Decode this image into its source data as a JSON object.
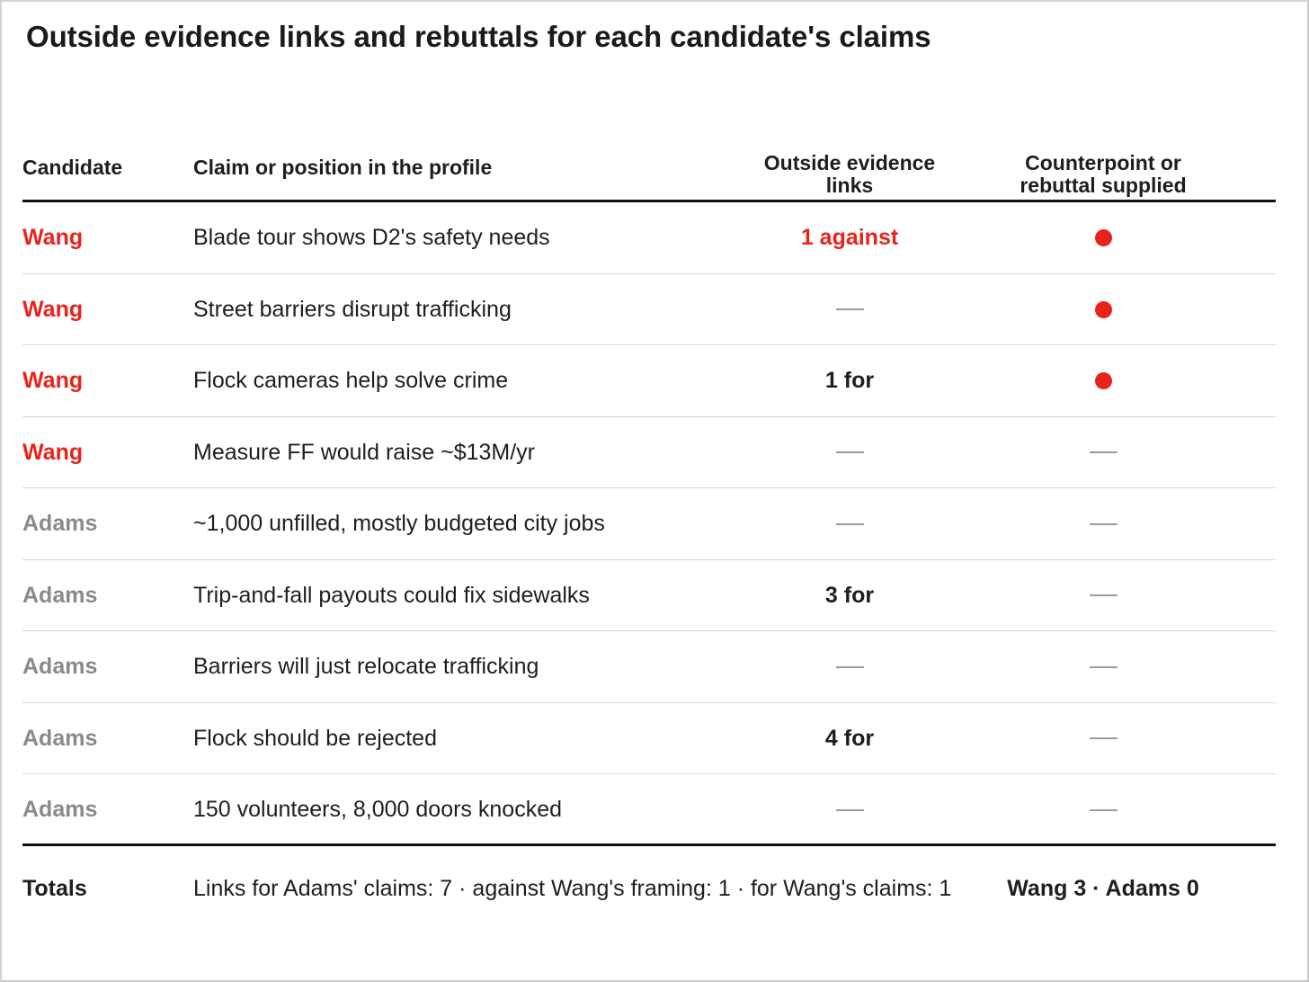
{
  "chart_data": {
    "type": "table",
    "title": "Outside evidence links and rebuttals for each candidate's claims",
    "columns": [
      "Candidate",
      "Claim or position in the profile",
      "Outside evidence links",
      "Counterpoint or rebuttal supplied"
    ],
    "rows": [
      {
        "candidate": "Wang",
        "claim": "Blade tour shows D2's safety needs",
        "evidence": "1 against",
        "evidence_against": true,
        "rebuttal": true
      },
      {
        "candidate": "Wang",
        "claim": "Street barriers disrupt trafficking",
        "evidence": "",
        "evidence_against": false,
        "rebuttal": true
      },
      {
        "candidate": "Wang",
        "claim": "Flock cameras help solve crime",
        "evidence": "1 for",
        "evidence_against": false,
        "rebuttal": true
      },
      {
        "candidate": "Wang",
        "claim": "Measure FF would raise ~$13M/yr",
        "evidence": "",
        "evidence_against": false,
        "rebuttal": false
      },
      {
        "candidate": "Adams",
        "claim": "~1,000 unfilled, mostly budgeted city jobs",
        "evidence": "",
        "evidence_against": false,
        "rebuttal": false
      },
      {
        "candidate": "Adams",
        "claim": "Trip-and-fall payouts could fix sidewalks",
        "evidence": "3 for",
        "evidence_against": false,
        "rebuttal": false
      },
      {
        "candidate": "Adams",
        "claim": "Barriers will just relocate trafficking",
        "evidence": "",
        "evidence_against": false,
        "rebuttal": false
      },
      {
        "candidate": "Adams",
        "claim": "Flock should be rejected",
        "evidence": "4 for",
        "evidence_against": false,
        "rebuttal": false
      },
      {
        "candidate": "Adams",
        "claim": "150 volunteers, 8,000 doors knocked",
        "evidence": "",
        "evidence_against": false,
        "rebuttal": false
      }
    ],
    "totals": {
      "label": "Totals",
      "links_summary": "Links for Adams' claims: 7 · against Wang's framing: 1 · for Wang's claims: 1",
      "rebuttal_summary": "Wang 3 · Adams 0"
    }
  },
  "colors": {
    "wang": "#e8231c",
    "adams": "#8a8a8a",
    "dot": "#e8231c"
  }
}
